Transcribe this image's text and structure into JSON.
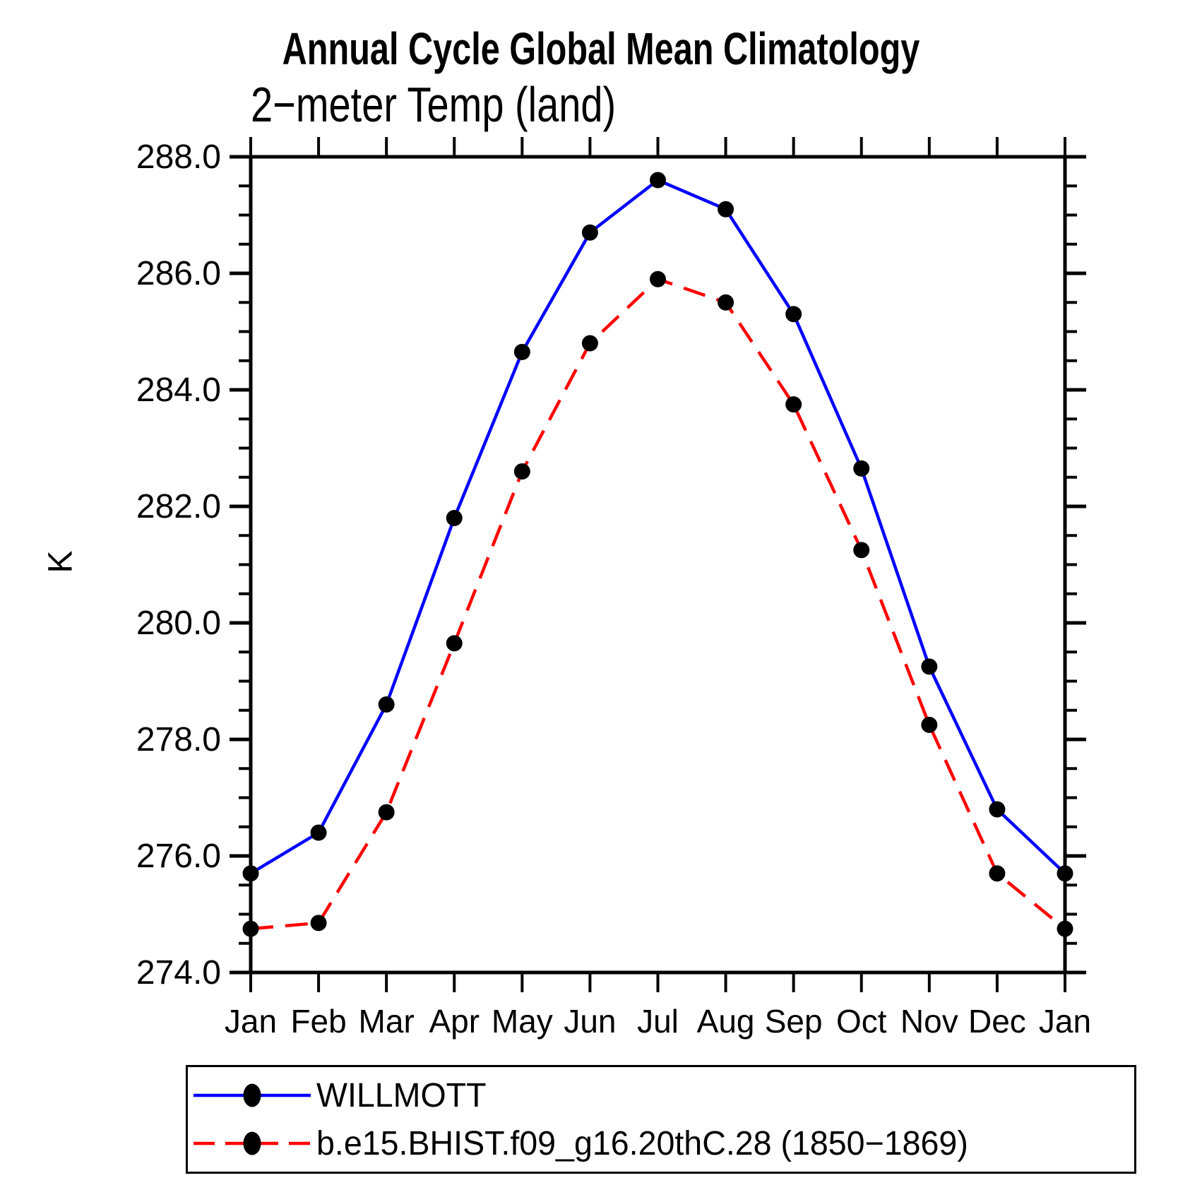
{
  "chart_data": {
    "type": "line",
    "title": "Annual Cycle Global Mean Climatology",
    "subtitle": "2−meter Temp (land)",
    "ylabel": "K",
    "categories": [
      "Jan",
      "Feb",
      "Mar",
      "Apr",
      "May",
      "Jun",
      "Jul",
      "Aug",
      "Sep",
      "Oct",
      "Nov",
      "Dec",
      "Jan"
    ],
    "ylim": [
      274.0,
      288.0
    ],
    "ytick_step": 2.0,
    "ytick_minor_step": 0.5,
    "ytick_labels": [
      "274.0",
      "276.0",
      "278.0",
      "280.0",
      "282.0",
      "284.0",
      "286.0",
      "288.0"
    ],
    "grid": false,
    "legend_position": "bottom-left",
    "axis_color": "#000000",
    "series": [
      {
        "name": "WILLMOTT",
        "color": "#0000ff",
        "line_style": "solid",
        "marker": "circle",
        "marker_color": "#000000",
        "values": [
          275.7,
          276.4,
          278.6,
          281.8,
          284.65,
          286.7,
          287.6,
          287.1,
          285.3,
          282.65,
          279.25,
          276.8,
          275.7
        ]
      },
      {
        "name": "b.e15.BHIST.f09_g16.20thC.28 (1850−1869)",
        "color": "#ff0000",
        "line_style": "dashed",
        "marker": "circle",
        "marker_color": "#000000",
        "values": [
          274.75,
          274.85,
          276.75,
          279.65,
          282.6,
          284.8,
          285.9,
          285.5,
          283.75,
          281.25,
          278.25,
          275.7,
          274.75
        ]
      }
    ]
  }
}
